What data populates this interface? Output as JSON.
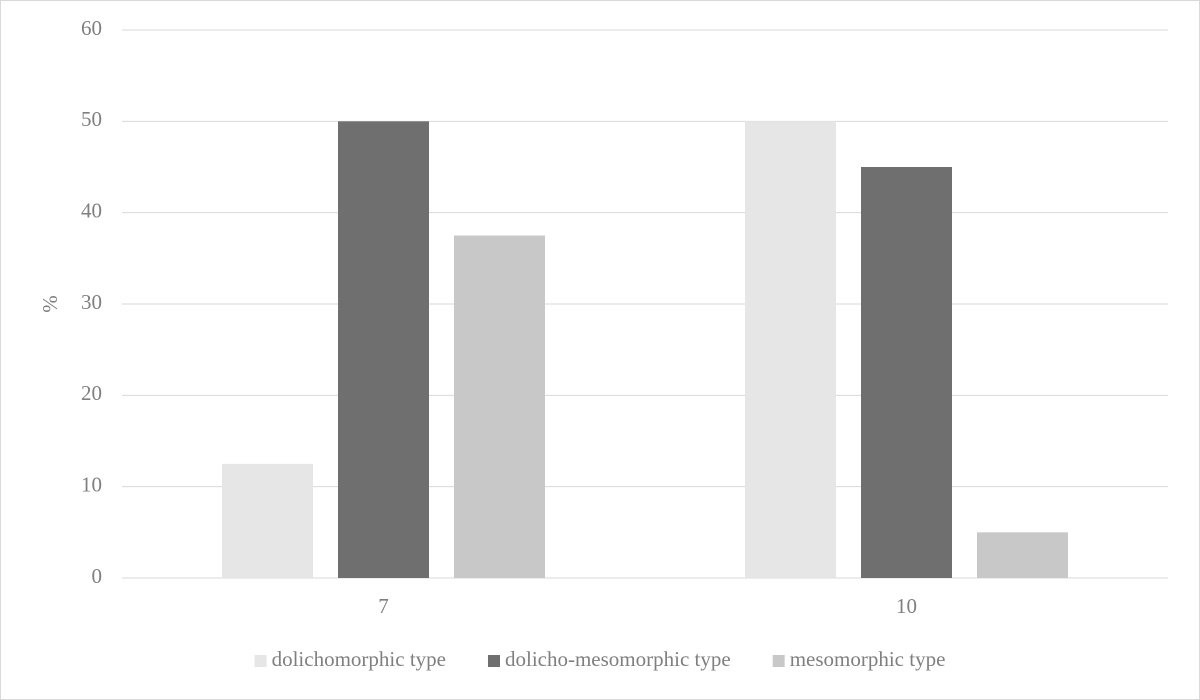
{
  "chart_data": {
    "type": "bar",
    "y_label": "%",
    "categories": [
      "7",
      "10"
    ],
    "series": [
      {
        "name": "dolichomorphic type",
        "color": "#e7e6e6",
        "values": [
          12.5,
          50
        ]
      },
      {
        "name": "dolicho-mesomorphic type",
        "color": "#6f6f6f",
        "values": [
          50,
          45
        ]
      },
      {
        "name": "mesomorphic type",
        "color": "#c8c8c8",
        "values": [
          37.5,
          5
        ]
      }
    ],
    "ylim": [
      0,
      60
    ],
    "yticks": [
      0,
      10,
      20,
      30,
      40,
      50,
      60
    ],
    "grid": true,
    "legend": "bottom"
  }
}
